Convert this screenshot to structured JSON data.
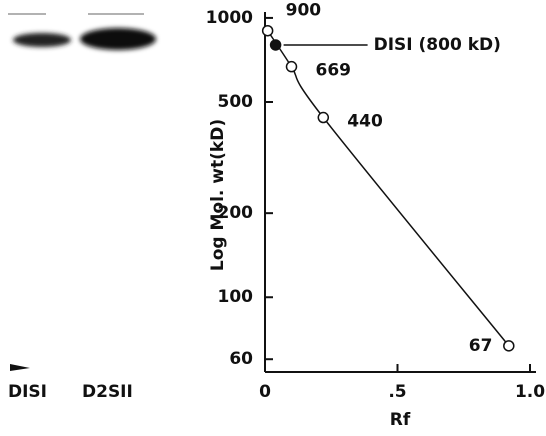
{
  "chart_data": {
    "type": "scatter",
    "ylabel": "Log  Mol. wt(kD)",
    "xlabel": "Rf",
    "log_y": true,
    "xlim": [
      0,
      1
    ],
    "xticks": [
      0,
      {
        "value": 0.5,
        "label": ".5"
      },
      {
        "value": 1,
        "label": "1.0"
      }
    ],
    "ylim": [
      54,
      1050
    ],
    "yticks": [
      60,
      100,
      200,
      500,
      1000
    ],
    "series": [
      {
        "marker": "open",
        "color": "#111",
        "x": [
          0.01,
          0.1,
          0.22,
          0.92
        ],
        "values": [
          900,
          669,
          440,
          67
        ]
      },
      {
        "marker": "filled",
        "color": "#111",
        "x": [
          0.04
        ],
        "values": [
          800
        ]
      }
    ],
    "annotation": "DISI (800 kD)"
  },
  "gel": {
    "lanes": [
      "DISI",
      "D2SII"
    ]
  }
}
